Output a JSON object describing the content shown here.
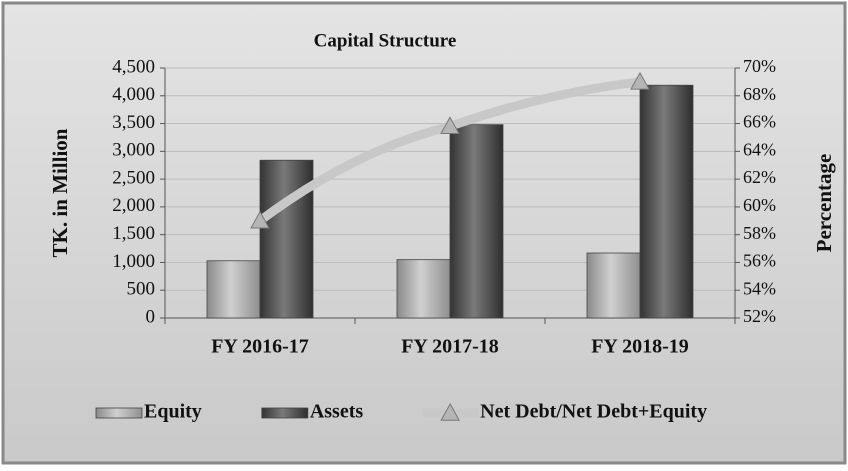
{
  "chart_data": {
    "type": "bar",
    "title": "Capital Structure",
    "categories": [
      "FY 2016-17",
      "FY 2017-18",
      "FY 2018-19"
    ],
    "series": [
      {
        "name": "Equity",
        "type": "bar",
        "color": "#a6a6a6",
        "values": [
          1030,
          1050,
          1170
        ]
      },
      {
        "name": "Assets",
        "type": "bar",
        "color": "#555555",
        "values": [
          2840,
          3480,
          4190
        ]
      },
      {
        "name": "Net Debt/Net Debt+Equity",
        "type": "line",
        "axis": "y2",
        "color": "#c8c8c8",
        "values": [
          59,
          65.8,
          69
        ]
      }
    ],
    "ylabel": "TK. in Million",
    "y2label": "Percentage",
    "ylim": [
      0,
      4500
    ],
    "yticks": [
      0,
      500,
      {
        "value": 1000,
        "label": "1,000"
      },
      {
        "value": 1500,
        "label": "1,500"
      },
      {
        "value": 2000,
        "label": "2,000"
      },
      {
        "value": 2500,
        "label": "2,500"
      },
      {
        "value": 3000,
        "label": "3,000"
      },
      {
        "value": 3500,
        "label": "3,500"
      },
      {
        "value": 4000,
        "label": "4,000"
      },
      {
        "value": 4500,
        "label": "4,500"
      }
    ],
    "y2lim": [
      52,
      70
    ],
    "y2ticks": [
      {
        "value": 52,
        "label": "52%"
      },
      {
        "value": 54,
        "label": "54%"
      },
      {
        "value": 56,
        "label": "56%"
      },
      {
        "value": 58,
        "label": "58%"
      },
      {
        "value": 60,
        "label": "60%"
      },
      {
        "value": 62,
        "label": "62%"
      },
      {
        "value": 64,
        "label": "64%"
      },
      {
        "value": 66,
        "label": "66%"
      },
      {
        "value": 68,
        "label": "68%"
      },
      {
        "value": 70,
        "label": "70%"
      }
    ],
    "grid": true,
    "legend": "bottom"
  }
}
